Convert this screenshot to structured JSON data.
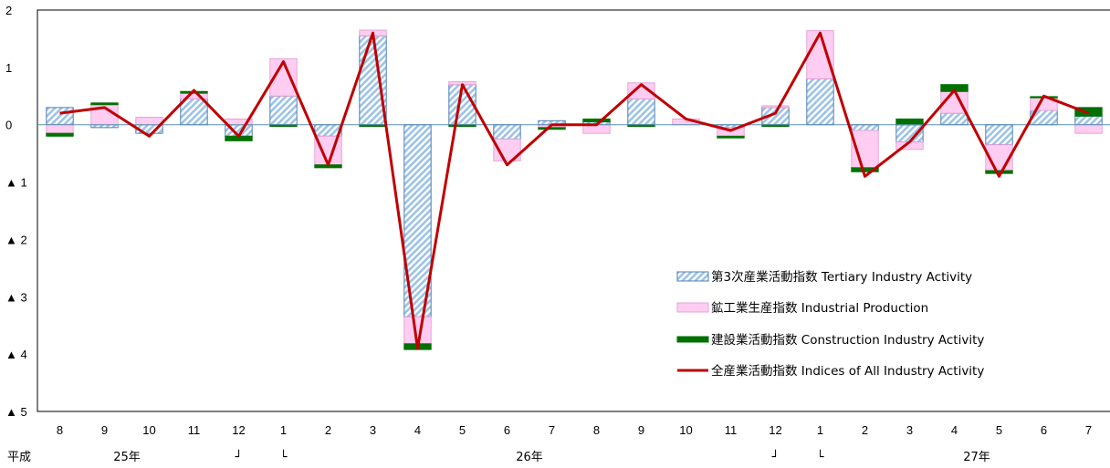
{
  "chart_data": {
    "type": "bar",
    "stacked": true,
    "categories": [
      "8",
      "9",
      "10",
      "11",
      "12",
      "1",
      "2",
      "3",
      "4",
      "5",
      "6",
      "7",
      "8",
      "9",
      "10",
      "11",
      "12",
      "1",
      "2",
      "3",
      "4",
      "5",
      "6",
      "7"
    ],
    "era_labels": [
      {
        "text": "平成",
        "after_category_index": -1
      },
      {
        "text": "25年",
        "center_index": 1.5
      },
      {
        "text": "┘",
        "center_index": 4
      },
      {
        "text": "└",
        "center_index": 5
      },
      {
        "text": "26年",
        "center_index": 10.5
      },
      {
        "text": "┘",
        "center_index": 16
      },
      {
        "text": "└",
        "center_index": 17
      },
      {
        "text": "27年",
        "center_index": 20.5
      }
    ],
    "y_tick_labels": [
      {
        "value": 2,
        "label": "2"
      },
      {
        "value": 1,
        "label": "1"
      },
      {
        "value": 0,
        "label": "0"
      },
      {
        "value": -1,
        "label": "▲ 1"
      },
      {
        "value": -2,
        "label": "▲ 2"
      },
      {
        "value": -3,
        "label": "▲ 3"
      },
      {
        "value": -4,
        "label": "▲ 4"
      },
      {
        "value": -5,
        "label": "▲ 5"
      }
    ],
    "ylim": [
      -5,
      2
    ],
    "legend_position": "lower-right",
    "series": [
      {
        "name": "第3次産業活動指数 Tertiary Industry Activity",
        "kind": "bar",
        "style": "hatched",
        "color": "#9cc3e6",
        "values": [
          0.3,
          -0.05,
          -0.15,
          0.45,
          -0.2,
          0.5,
          -0.2,
          1.55,
          -3.35,
          0.7,
          -0.25,
          0.07,
          0.05,
          0.45,
          0.0,
          -0.05,
          0.3,
          0.8,
          -0.1,
          -0.3,
          0.2,
          -0.35,
          0.25,
          0.15
        ]
      },
      {
        "name": "鉱工業生産指数 Industrial Production",
        "kind": "bar",
        "style": "solid",
        "color": "#ffccf2",
        "values": [
          -0.15,
          0.35,
          0.13,
          0.1,
          0.1,
          0.65,
          -0.5,
          0.1,
          -0.47,
          0.05,
          -0.38,
          -0.05,
          -0.15,
          0.28,
          0.1,
          -0.15,
          0.03,
          0.84,
          -0.65,
          -0.13,
          0.38,
          -0.45,
          0.22,
          -0.15
        ]
      },
      {
        "name": "建設業活動指数 Construction Industry Activity",
        "kind": "bar",
        "style": "solid",
        "color": "#007000",
        "values": [
          -0.05,
          0.03,
          0.0,
          0.03,
          -0.08,
          -0.03,
          -0.05,
          -0.03,
          -0.1,
          -0.03,
          0.0,
          -0.03,
          0.05,
          -0.03,
          0.0,
          -0.03,
          -0.03,
          0.0,
          -0.07,
          0.1,
          0.12,
          -0.05,
          0.02,
          0.15
        ]
      },
      {
        "name": "全産業活動指数 Indices of All Industry Activity",
        "kind": "line",
        "color": "#c00000",
        "values": [
          0.2,
          0.3,
          -0.2,
          0.6,
          -0.2,
          1.1,
          -0.7,
          1.6,
          -3.9,
          0.7,
          -0.7,
          0.0,
          0.0,
          0.7,
          0.1,
          -0.1,
          0.2,
          1.6,
          -0.9,
          -0.3,
          0.6,
          -0.9,
          0.5,
          0.2
        ]
      }
    ]
  }
}
